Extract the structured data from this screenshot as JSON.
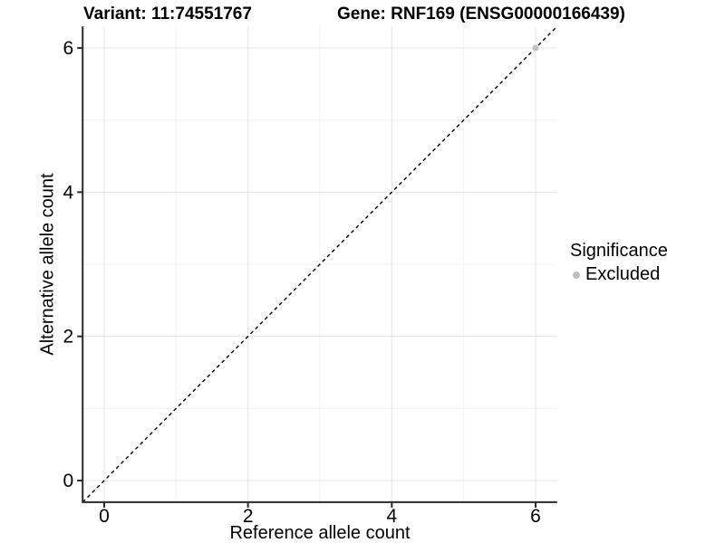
{
  "header": {
    "variant_title": "Variant: 11:74551767",
    "gene_title": "Gene: RNF169 (ENSG00000166439)"
  },
  "chart_data": {
    "type": "scatter",
    "title_left": "Variant: 11:74551767",
    "title_right": "Gene: RNF169 (ENSG00000166439)",
    "xlabel": "Reference allele count",
    "ylabel": "Alternative allele count",
    "xlim": [
      -0.3,
      6.3
    ],
    "ylim": [
      -0.3,
      6.3
    ],
    "x_ticks": [
      0,
      2,
      4,
      6
    ],
    "y_ticks": [
      0,
      2,
      4,
      6
    ],
    "x_minor_ticks": [
      1,
      3,
      5
    ],
    "y_minor_ticks": [
      1,
      3,
      5
    ],
    "grid": "major+minor",
    "points": [
      {
        "x": 6,
        "y": 6,
        "significance": "Excluded"
      }
    ],
    "identity_line": {
      "type": "abline",
      "slope": 1,
      "intercept": 0,
      "style": "dashed",
      "color": "#000000"
    },
    "legend": {
      "title": "Significance",
      "position": "right",
      "entries": [
        {
          "label": "Excluded",
          "color": "#bebebe"
        }
      ]
    },
    "colors": {
      "point_excluded": "#c2c2c2",
      "grid_major": "#e4e4e4",
      "grid_minor": "#f2f2f2",
      "axis": "#2b2b2b",
      "text": "#000000",
      "background": "#ffffff"
    }
  }
}
